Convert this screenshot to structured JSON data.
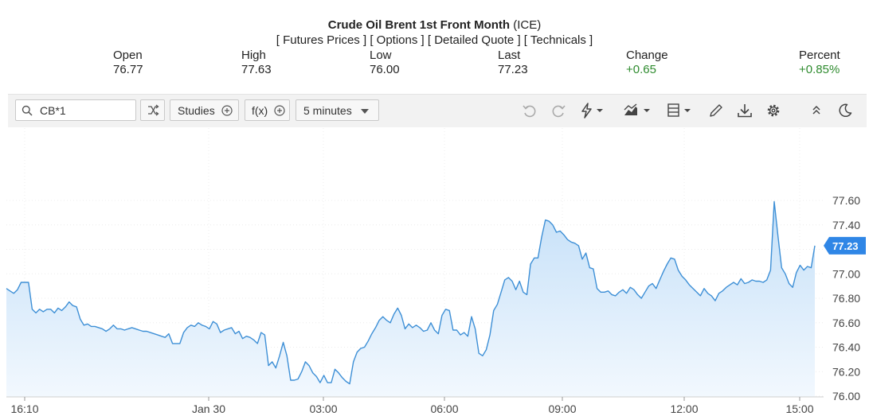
{
  "header": {
    "title_bold": "Crude Oil Brent 1st Front Month",
    "title_exchange": "(ICE)",
    "links": [
      "[ Futures Prices ]",
      "[ Options ]",
      "[ Detailed Quote ]",
      "[ Technicals ]"
    ]
  },
  "stats": [
    {
      "label": "Open",
      "value": "76.77"
    },
    {
      "label": "High",
      "value": "77.63"
    },
    {
      "label": "Low",
      "value": "76.00"
    },
    {
      "label": "Last",
      "value": "77.23"
    },
    {
      "label": "Change",
      "value": "+0.65"
    },
    {
      "label": "Percent",
      "value": "+0.85%"
    }
  ],
  "toolbar": {
    "symbol": "CB*1",
    "studies_label": "Studies",
    "fx_label": "f(x)",
    "interval_label": "5 minutes",
    "icons": [
      "undo-icon",
      "redo-icon",
      "lightning-icon",
      "chart-type-icon",
      "layout-icon",
      "pencil-icon",
      "download-icon",
      "gear-icon",
      "collapse-icon",
      "dark-mode-icon"
    ]
  },
  "colors": {
    "line": "#3d8fd6",
    "fill": "#d4e8fa",
    "positive": "#2e8b2e",
    "last_badge": "#2f86e6"
  },
  "chart_data": {
    "type": "area",
    "title": "",
    "xlabel": "",
    "ylabel": "",
    "ylim": [
      75.98,
      77.65
    ],
    "y_ticks": [
      "77.60",
      "77.40",
      "77.20",
      "77.00",
      "76.80",
      "76.60",
      "76.40",
      "76.20",
      "76.00"
    ],
    "x_tick_labels": [
      "16:10",
      "Jan 30",
      "03:00",
      "06:00",
      "09:00",
      "12:00",
      "15:00"
    ],
    "last_value_label": "77.23",
    "grid": true,
    "series": [
      {
        "values": [
          76.88,
          76.86,
          76.84,
          76.87,
          76.93,
          76.93,
          76.93,
          76.71,
          76.68,
          76.71,
          76.69,
          76.71,
          76.71,
          76.68,
          76.72,
          76.7,
          76.73,
          76.77,
          76.74,
          76.73,
          76.63,
          76.58,
          76.59,
          76.57,
          76.57,
          76.56,
          76.55,
          76.53,
          76.55,
          76.58,
          76.55,
          76.55,
          76.54,
          76.55,
          76.56,
          76.55,
          76.54,
          76.53,
          76.53,
          76.52,
          76.51,
          76.5,
          76.49,
          76.48,
          76.51,
          76.43,
          76.43,
          76.43,
          76.52,
          76.56,
          76.58,
          76.57,
          76.6,
          76.58,
          76.57,
          76.55,
          76.61,
          76.59,
          76.52,
          76.54,
          76.55,
          76.56,
          76.51,
          76.53,
          76.47,
          76.49,
          76.48,
          76.46,
          76.43,
          76.52,
          76.5,
          76.25,
          76.28,
          76.23,
          76.33,
          76.44,
          76.33,
          76.13,
          76.13,
          76.14,
          76.2,
          76.28,
          76.25,
          76.19,
          76.16,
          76.11,
          76.17,
          76.11,
          76.11,
          76.22,
          76.19,
          76.15,
          76.12,
          76.1,
          76.28,
          76.36,
          76.39,
          76.4,
          76.45,
          76.51,
          76.56,
          76.62,
          76.65,
          76.62,
          76.6,
          76.67,
          76.72,
          76.66,
          76.55,
          76.59,
          76.56,
          76.58,
          76.56,
          76.53,
          76.54,
          76.6,
          76.54,
          76.51,
          76.66,
          76.71,
          76.7,
          76.54,
          76.54,
          76.5,
          76.52,
          76.49,
          76.65,
          76.55,
          76.35,
          76.33,
          76.38,
          76.5,
          76.7,
          76.75,
          76.85,
          76.95,
          76.97,
          76.94,
          76.87,
          76.94,
          76.85,
          76.83,
          77.08,
          77.13,
          77.13,
          77.3,
          77.44,
          77.43,
          77.4,
          77.34,
          77.35,
          77.32,
          77.28,
          77.26,
          77.25,
          77.23,
          77.12,
          77.17,
          77.05,
          77.04,
          76.88,
          76.85,
          76.85,
          76.86,
          76.83,
          76.82,
          76.85,
          76.87,
          76.84,
          76.89,
          76.87,
          76.83,
          76.8,
          76.85,
          76.9,
          76.92,
          76.88,
          76.95,
          77.02,
          77.08,
          77.13,
          77.12,
          77.03,
          76.98,
          76.95,
          76.91,
          76.88,
          76.85,
          76.82,
          76.88,
          76.84,
          76.82,
          76.78,
          76.84,
          76.86,
          76.89,
          76.91,
          76.93,
          76.91,
          76.96,
          76.92,
          76.93,
          76.95,
          76.94,
          76.94,
          76.93,
          76.95,
          77.03,
          77.59,
          77.31,
          77.05,
          77.0,
          76.92,
          76.89,
          77.01,
          77.07,
          77.03,
          77.06,
          77.05,
          77.23
        ]
      }
    ]
  }
}
